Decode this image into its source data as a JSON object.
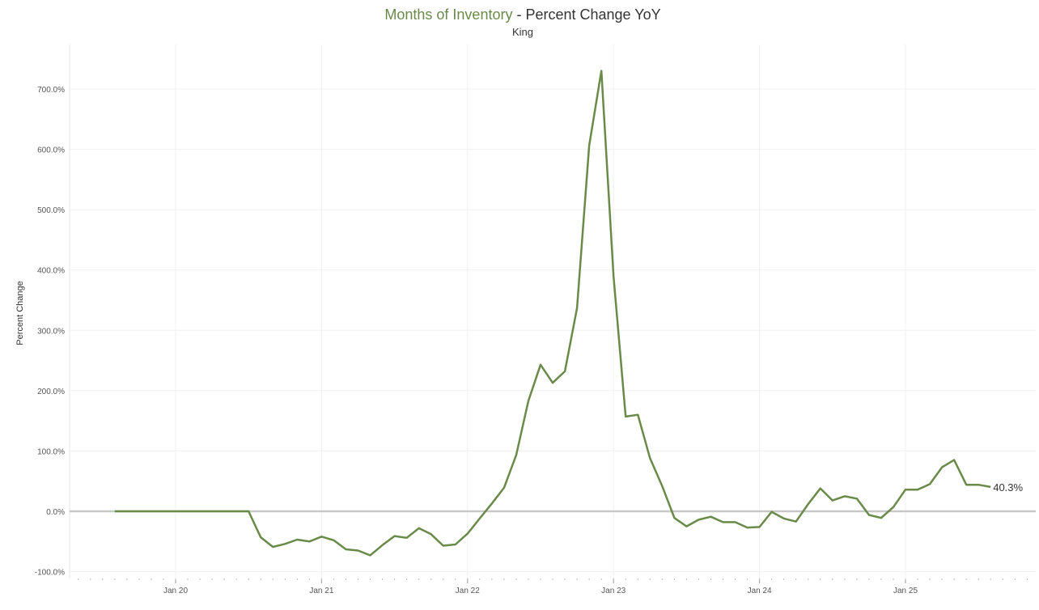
{
  "header": {
    "title_highlight": "Months of Inventory",
    "title_rest": " - Percent Change YoY",
    "subtitle": "King"
  },
  "chart_data": {
    "type": "line",
    "title": "Months of Inventory - Percent Change YoY",
    "subtitle": "King",
    "xlabel": "",
    "ylabel": "Percent Change",
    "ylim": [
      -100,
      750
    ],
    "yticks": [
      -100,
      0,
      100,
      200,
      300,
      400,
      500,
      600,
      700
    ],
    "ytick_labels": [
      "-100.0%",
      "0.0%",
      "100.0%",
      "200.0%",
      "300.0%",
      "400.0%",
      "500.0%",
      "600.0%",
      "700.0%"
    ],
    "xticks": [
      "2020-01",
      "2021-01",
      "2022-01",
      "2023-01",
      "2024-01",
      "2025-01"
    ],
    "xtick_labels": [
      "Jan 20",
      "Jan 21",
      "Jan 22",
      "Jan 23",
      "Jan 24",
      "Jan 25"
    ],
    "grid": true,
    "line_color": "#6a8a4a",
    "zero_line_color": "#c8c8c8",
    "end_label": "40.3%",
    "series": [
      {
        "x": [
          "2019-08",
          "2019-09",
          "2019-10",
          "2019-11",
          "2019-12",
          "2020-01",
          "2020-02",
          "2020-03",
          "2020-04",
          "2020-05",
          "2020-06",
          "2020-07",
          "2020-08",
          "2020-09",
          "2020-10",
          "2020-11",
          "2020-12",
          "2021-01",
          "2021-02",
          "2021-03",
          "2021-04",
          "2021-05",
          "2021-06",
          "2021-07",
          "2021-08",
          "2021-09",
          "2021-10",
          "2021-11",
          "2021-12",
          "2022-01",
          "2022-02",
          "2022-03",
          "2022-04",
          "2022-05",
          "2022-06",
          "2022-07",
          "2022-08",
          "2022-09",
          "2022-10",
          "2022-11",
          "2022-12",
          "2023-01",
          "2023-02",
          "2023-03",
          "2023-04",
          "2023-05",
          "2023-06",
          "2023-07",
          "2023-08",
          "2023-09",
          "2023-10",
          "2023-11",
          "2023-12",
          "2024-01",
          "2024-02",
          "2024-03",
          "2024-04",
          "2024-05",
          "2024-06",
          "2024-07",
          "2024-08",
          "2024-09",
          "2024-10",
          "2024-11",
          "2024-12",
          "2025-01",
          "2025-02",
          "2025-03",
          "2025-04",
          "2025-05",
          "2025-06",
          "2025-07",
          "2025-08"
        ],
        "values": [
          0,
          0,
          0,
          0,
          0,
          0,
          0,
          0,
          0,
          0,
          0,
          0,
          -43,
          -59,
          -54,
          -47,
          -50,
          -42,
          -48,
          -63,
          -65,
          -73,
          -56,
          -41,
          -44,
          -28,
          -38,
          -57,
          -55,
          -37,
          -12,
          13,
          39,
          93,
          183,
          243,
          213,
          232,
          337,
          606,
          730,
          390,
          157,
          160,
          88,
          42,
          -11,
          -25,
          -14,
          -9,
          -18,
          -18,
          -27,
          -26,
          -1,
          -12,
          -17,
          12,
          38,
          18,
          25,
          21,
          -6,
          -11,
          7,
          36,
          36,
          45,
          73,
          85,
          44,
          44,
          40.3
        ]
      }
    ]
  }
}
